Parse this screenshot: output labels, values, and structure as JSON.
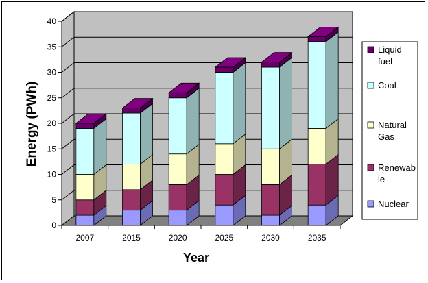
{
  "chart_data": {
    "type": "bar",
    "stacked": true,
    "three_d": true,
    "title": "",
    "xlabel": "Year",
    "ylabel": "Energy (PWh)",
    "ylim": [
      0,
      40
    ],
    "yticks": [
      0,
      5,
      10,
      15,
      20,
      25,
      30,
      35,
      40
    ],
    "grid": true,
    "legend_position": "right",
    "categories": [
      "2007",
      "2015",
      "2020",
      "2025",
      "2030",
      "2035"
    ],
    "series": [
      {
        "name": "Nuclear",
        "color": "#9999ff",
        "values": [
          2,
          3,
          3,
          4,
          2,
          4
        ]
      },
      {
        "name": "Renewable",
        "color": "#993366",
        "values": [
          3,
          4,
          5,
          6,
          6,
          8
        ]
      },
      {
        "name": "Natural Gas",
        "color": "#ffffcc",
        "values": [
          5,
          5,
          6,
          6,
          7,
          7
        ]
      },
      {
        "name": "Coal",
        "color": "#ccffff",
        "values": [
          9,
          10,
          11,
          14,
          16,
          17
        ]
      },
      {
        "name": "Liquid fuel",
        "color": "#660066",
        "values": [
          1,
          1,
          1,
          1,
          1,
          1
        ]
      }
    ],
    "legend_entries": [
      {
        "series": 4,
        "lines": [
          "Liquid",
          "fuel"
        ]
      },
      {
        "series": 3,
        "lines": [
          "Coal"
        ]
      },
      {
        "series": 2,
        "lines": [
          "Natural",
          "Gas"
        ]
      },
      {
        "series": 1,
        "lines": [
          "Renewab",
          "le"
        ]
      },
      {
        "series": 0,
        "lines": [
          "Nuclear"
        ]
      }
    ],
    "wall_color": "#c0c0c0",
    "floor_color": "#808080"
  }
}
